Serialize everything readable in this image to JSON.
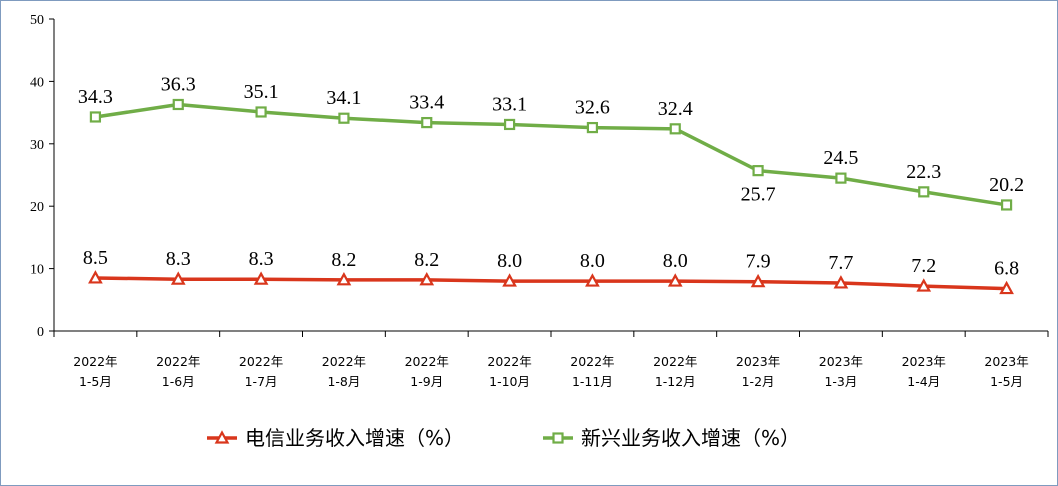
{
  "chart_data": {
    "type": "line",
    "categories": [
      [
        "2022年",
        "1-5月"
      ],
      [
        "2022年",
        "1-6月"
      ],
      [
        "2022年",
        "1-7月"
      ],
      [
        "2022年",
        "1-8月"
      ],
      [
        "2022年",
        "1-9月"
      ],
      [
        "2022年",
        "1-10月"
      ],
      [
        "2022年",
        "1-11月"
      ],
      [
        "2022年",
        "1-12月"
      ],
      [
        "2023年",
        "1-2月"
      ],
      [
        "2023年",
        "1-3月"
      ],
      [
        "2023年",
        "1-4月"
      ],
      [
        "2023年",
        "1-5月"
      ]
    ],
    "series": [
      {
        "name": "电信业务收入增速（%）",
        "values": [
          8.5,
          8.3,
          8.3,
          8.2,
          8.2,
          8.0,
          8.0,
          8.0,
          7.9,
          7.7,
          7.2,
          6.8
        ],
        "labels": [
          "8.5",
          "8.3",
          "8.3",
          "8.2",
          "8.2",
          "8.0",
          "8.0",
          "8.0",
          "7.9",
          "7.7",
          "7.2",
          "6.8"
        ],
        "color": "#d9361c",
        "marker": "triangle"
      },
      {
        "name": "新兴业务收入增速（%）",
        "values": [
          34.3,
          36.3,
          35.1,
          34.1,
          33.4,
          33.1,
          32.6,
          32.4,
          25.7,
          24.5,
          22.3,
          20.2
        ],
        "labels": [
          "34.3",
          "36.3",
          "35.1",
          "34.1",
          "33.4",
          "33.1",
          "32.6",
          "32.4",
          "25.7",
          "24.5",
          "22.3",
          "20.2"
        ],
        "label_below": [
          false,
          false,
          false,
          false,
          false,
          false,
          false,
          false,
          true,
          false,
          false,
          false
        ],
        "color": "#70ad47",
        "marker": "square"
      }
    ],
    "ylim": [
      0,
      50
    ],
    "yticks": [
      "0",
      "10",
      "20",
      "30",
      "40",
      "50"
    ],
    "grid": false,
    "legend": "bottom"
  }
}
